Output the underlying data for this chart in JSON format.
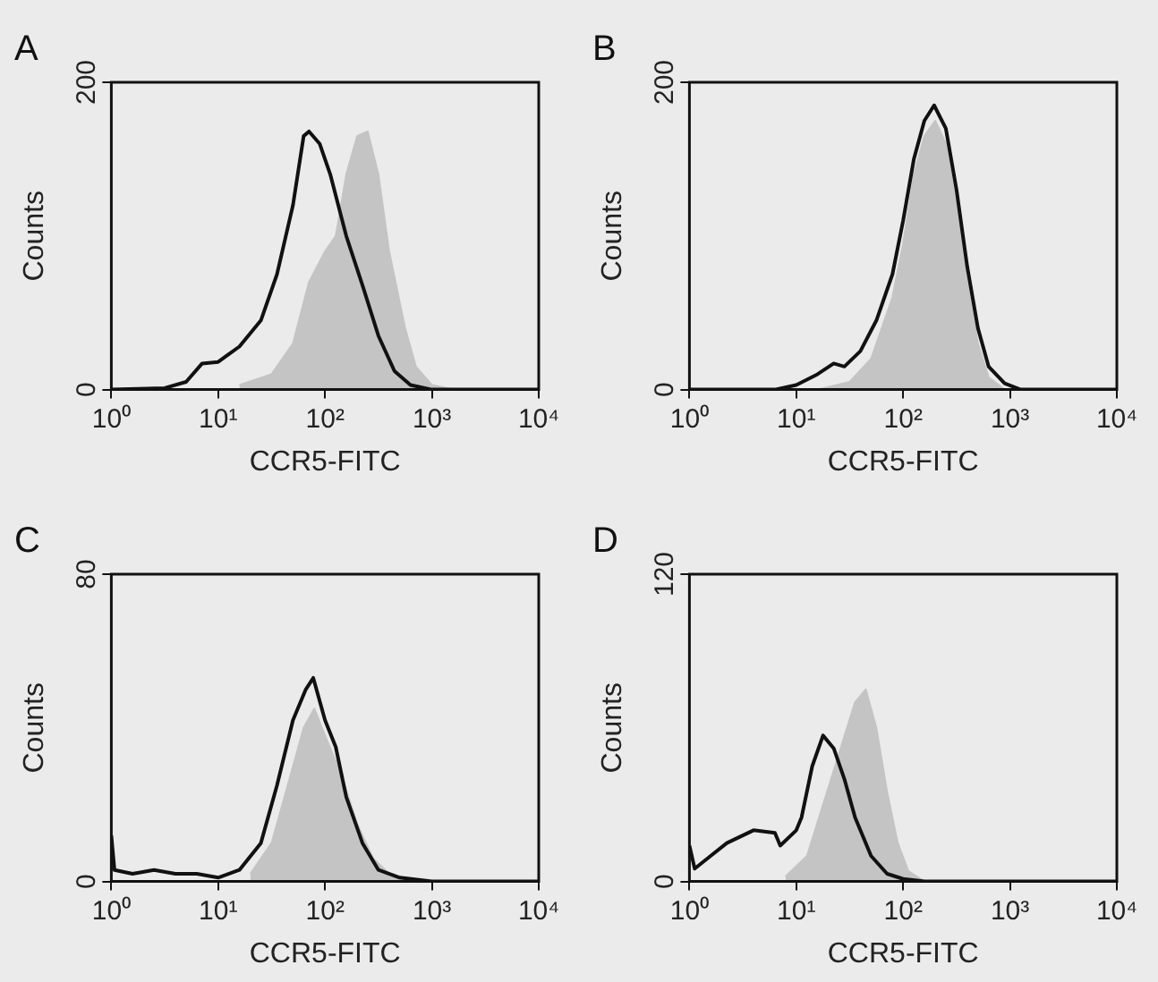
{
  "chart_data": [
    {
      "type": "line",
      "title": "A",
      "xlabel": "CCR5-FITC",
      "ylabel": "Counts",
      "log": "x",
      "xlim": [
        1,
        10000
      ],
      "xticks": [
        {
          "value": 1,
          "label": "10⁰"
        },
        {
          "value": 10,
          "label": "10¹"
        },
        {
          "value": 100,
          "label": "10²"
        },
        {
          "value": 1000,
          "label": "10³"
        },
        {
          "value": 10000,
          "label": "10⁴"
        }
      ],
      "ylim": [
        0,
        200
      ],
      "yticks": [
        0,
        200
      ],
      "grid": false,
      "series": [
        {
          "type": "area",
          "color": "#c4c4c4",
          "x": [
            15.8,
            31.6,
            50.1,
            70.8,
            100,
            126,
            158,
            200,
            251,
            316,
            398,
            562,
            708,
            1000,
            1585
          ],
          "values": [
            3,
            10,
            30,
            70,
            90,
            100,
            140,
            165,
            168,
            140,
            90,
            40,
            15,
            3,
            0
          ]
        },
        {
          "type": "line",
          "color": "#111111",
          "x": [
            1,
            3.16,
            5.01,
            7.08,
            10,
            15.8,
            25.1,
            35.5,
            50.1,
            63.1,
            70.8,
            89.1,
            112,
            158,
            224,
            316,
            447,
            631,
            1000,
            10000
          ],
          "values": [
            0,
            1,
            5,
            17,
            18,
            28,
            45,
            75,
            120,
            165,
            168,
            160,
            140,
            100,
            68,
            35,
            12,
            3,
            0,
            0
          ]
        }
      ]
    },
    {
      "type": "line",
      "title": "B",
      "xlabel": "CCR5-FITC",
      "ylabel": "Counts",
      "log": "x",
      "xlim": [
        1,
        10000
      ],
      "xticks": [
        {
          "value": 1,
          "label": "10⁰"
        },
        {
          "value": 10,
          "label": "10¹"
        },
        {
          "value": 100,
          "label": "10²"
        },
        {
          "value": 1000,
          "label": "10³"
        },
        {
          "value": 10000,
          "label": "10⁴"
        }
      ],
      "ylim": [
        0,
        200
      ],
      "yticks": [
        0,
        200
      ],
      "grid": false,
      "series": [
        {
          "type": "area",
          "color": "#c4c4c4",
          "x": [
            15.8,
            31.6,
            50.1,
            79.4,
            100,
            126,
            158,
            200,
            251,
            316,
            398,
            501,
            631,
            891
          ],
          "values": [
            0,
            5,
            20,
            60,
            95,
            140,
            165,
            175,
            160,
            120,
            70,
            30,
            8,
            0
          ]
        },
        {
          "type": "line",
          "color": "#111111",
          "x": [
            1,
            6.31,
            10,
            15.8,
            22.4,
            28.2,
            39.8,
            56.2,
            79.4,
            100,
            126,
            158,
            195,
            251,
            316,
            398,
            501,
            631,
            891,
            1259,
            10000
          ],
          "values": [
            0,
            0,
            3,
            10,
            17,
            15,
            25,
            45,
            75,
            110,
            150,
            175,
            185,
            170,
            130,
            80,
            40,
            15,
            4,
            0,
            0
          ]
        }
      ]
    },
    {
      "type": "line",
      "title": "C",
      "xlabel": "CCR5-FITC",
      "ylabel": "Counts",
      "log": "x",
      "xlim": [
        1,
        10000
      ],
      "xticks": [
        {
          "value": 1,
          "label": "10⁰"
        },
        {
          "value": 10,
          "label": "10¹"
        },
        {
          "value": 100,
          "label": "10²"
        },
        {
          "value": 1000,
          "label": "10³"
        },
        {
          "value": 10000,
          "label": "10⁴"
        }
      ],
      "ylim": [
        0,
        80
      ],
      "yticks": [
        0,
        80
      ],
      "grid": false,
      "series": [
        {
          "type": "area",
          "color": "#c4c4c4",
          "x": [
            20,
            31.6,
            44.7,
            63.1,
            79.4,
            100,
            141,
            200,
            282,
            398,
            631
          ],
          "values": [
            2,
            10,
            25,
            40,
            45,
            38,
            28,
            15,
            6,
            2,
            0
          ]
        },
        {
          "type": "line",
          "color": "#111111",
          "x": [
            1,
            1.07,
            1.58,
            2.51,
            3.98,
            6.31,
            10,
            15.8,
            25.1,
            35.5,
            50.1,
            66.1,
            77.6,
            100,
            126,
            158,
            224,
            316,
            501,
            1000,
            10000
          ],
          "values": [
            12,
            3,
            2,
            3,
            2,
            2,
            1,
            3,
            10,
            25,
            42,
            50,
            53,
            42,
            35,
            22,
            10,
            3,
            1,
            0,
            0
          ]
        }
      ]
    },
    {
      "type": "line",
      "title": "D",
      "xlabel": "CCR5-FITC",
      "ylabel": "Counts",
      "log": "x",
      "xlim": [
        1,
        10000
      ],
      "xticks": [
        {
          "value": 1,
          "label": "10⁰"
        },
        {
          "value": 10,
          "label": "10¹"
        },
        {
          "value": 100,
          "label": "10²"
        },
        {
          "value": 1000,
          "label": "10³"
        },
        {
          "value": 10000,
          "label": "10⁴"
        }
      ],
      "ylim": [
        0,
        120
      ],
      "yticks": [
        0,
        120
      ],
      "grid": false,
      "series": [
        {
          "type": "area",
          "color": "#c4c4c4",
          "x": [
            7.94,
            12.6,
            17.8,
            25.1,
            35.5,
            44.7,
            56.2,
            70.8,
            89.1,
            112,
            158
          ],
          "values": [
            2,
            10,
            30,
            50,
            70,
            75,
            60,
            35,
            15,
            4,
            0
          ]
        },
        {
          "type": "line",
          "color": "#111111",
          "x": [
            1,
            1.12,
            1.58,
            2.24,
            3.98,
            6.31,
            7.08,
            10,
            11.2,
            14.1,
            17.8,
            22.4,
            28.2,
            35.5,
            50.1,
            70.8,
            100,
            158,
            10000
          ],
          "values": [
            14,
            5,
            10,
            15,
            20,
            19,
            14,
            20,
            25,
            45,
            57,
            52,
            40,
            25,
            10,
            3,
            1,
            0,
            0
          ]
        }
      ]
    }
  ]
}
